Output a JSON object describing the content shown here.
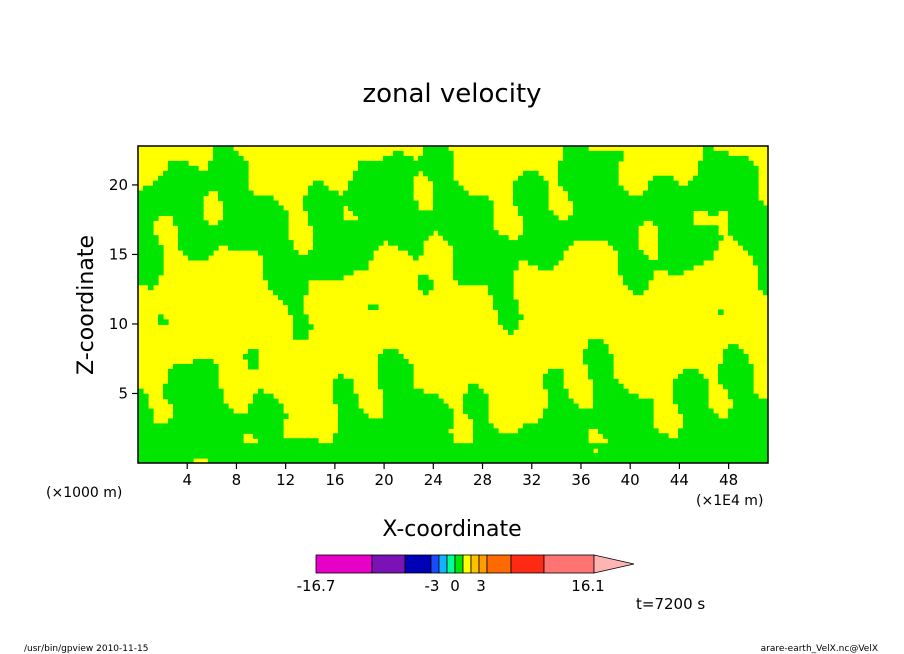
{
  "chart_data": {
    "type": "heatmap",
    "title": "zonal velocity",
    "xlabel": "X-coordinate",
    "ylabel": "Z-coordinate",
    "x_unit": "(×1E4 m)",
    "y_unit": "(×1000 m)",
    "xlim": [
      0,
      51.2
    ],
    "ylim": [
      0,
      22.8
    ],
    "x_ticks": [
      "4",
      "8",
      "12",
      "16",
      "20",
      "24",
      "28",
      "32",
      "36",
      "40",
      "44",
      "48"
    ],
    "y_ticks": [
      "5",
      "10",
      "15",
      "20"
    ],
    "grid": false,
    "field_colors": {
      "negative_small": "#00e600",
      "positive_small": "#ffff00",
      "contour_line": "#000000"
    },
    "colorbar": {
      "labels": [
        "-16.7",
        "-3",
        "0",
        "3",
        "16.1"
      ],
      "segments": [
        {
          "color": "#e600c8"
        },
        {
          "color": "#7a12b6"
        },
        {
          "color": "#0000b4"
        },
        {
          "color": "#1a4cff"
        },
        {
          "color": "#12b4ff"
        },
        {
          "color": "#00ff96"
        },
        {
          "color": "#00e600"
        },
        {
          "color": "#ffff00"
        },
        {
          "color": "#ffc000"
        },
        {
          "color": "#ff9c00"
        },
        {
          "color": "#ff6a00"
        },
        {
          "color": "#ff2a14"
        },
        {
          "color": "#ff7373"
        },
        {
          "color": "#ffb4b4"
        }
      ]
    },
    "time_label": "t=7200 s"
  },
  "footer": {
    "left": "/usr/bin/gpview  2010-11-15",
    "right": "arare-earth_VelX.nc@VelX"
  }
}
